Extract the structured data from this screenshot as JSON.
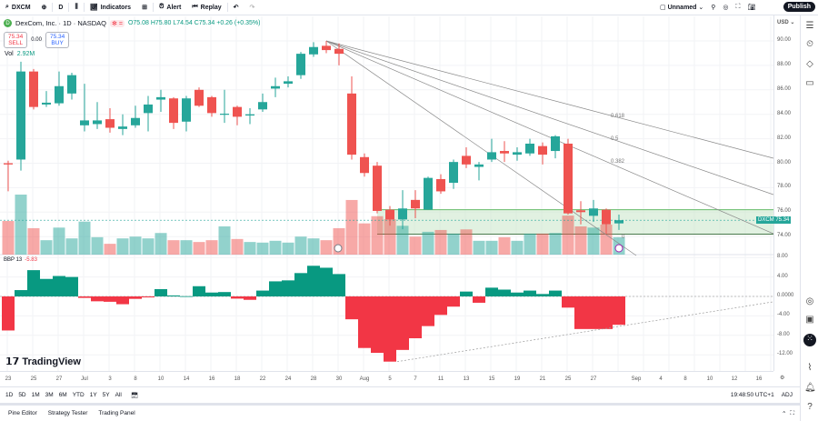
{
  "toolbar": {
    "symbol": "DXCM",
    "interval": "D",
    "indicators": "Indicators",
    "alert": "Alert",
    "replay": "Replay",
    "layout_name": "Unnamed",
    "publish": "Publish"
  },
  "legend": {
    "title": "DexCom, Inc. · 1D · NASDAQ",
    "ohlc": "O75.08 H75.80 L74.54 C75.34 +0.26 (+0.35%)",
    "sell_price": "75.34",
    "sell_label": "SELL",
    "spread": "0.00",
    "buy_price": "75.34",
    "buy_label": "BUY",
    "vol_label": "Vol",
    "vol_value": "2.92M",
    "bbp_label": "BBP 13",
    "bbp_value": "-5.83"
  },
  "price_axis": {
    "currency": "USD",
    "labels": [
      "90.00",
      "88.00",
      "86.00",
      "84.00",
      "82.00",
      "80.00",
      "78.00",
      "76.00",
      "74.00"
    ],
    "last_tag_symbol": "DXCM",
    "last_tag_price": "75.34",
    "bbp_labels": [
      "8.00",
      "4.00",
      "0.0000",
      "-4.00",
      "-8.00",
      "-12.00"
    ]
  },
  "time_axis": {
    "labels": [
      "23",
      "25",
      "27",
      "Jul",
      "3",
      "8",
      "10",
      "14",
      "16",
      "18",
      "22",
      "24",
      "28",
      "30",
      "Aug",
      "5",
      "7",
      "11",
      "13",
      "15",
      "19",
      "21",
      "25",
      "27",
      "Sep",
      "4",
      "8",
      "10",
      "12",
      "16"
    ]
  },
  "range_bar": {
    "ranges": [
      "1D",
      "5D",
      "1M",
      "3M",
      "6M",
      "YTD",
      "1Y",
      "5Y",
      "All"
    ],
    "clock": "19:48:50 UTC+1",
    "adj": "ADJ"
  },
  "bottom_tabs": [
    "Pine Editor",
    "Strategy Tester",
    "Trading Panel"
  ],
  "brand": "TradingView",
  "colors": {
    "up": "#26a69a",
    "down": "#ef5350",
    "bbp_up": "#089981",
    "bbp_down": "#f23645",
    "zone": "#c8e6c9"
  },
  "chart_data": {
    "type": "candlestick",
    "price_ylim": [
      73.3,
      91
    ],
    "candles": [
      [
        80.0,
        80.2,
        77.7,
        79.9
      ],
      [
        80.3,
        88.3,
        79.4,
        87.5
      ],
      [
        87.5,
        87.7,
        84.4,
        84.6
      ],
      [
        84.8,
        85.9,
        84.6,
        84.95
      ],
      [
        84.9,
        87.5,
        84.7,
        86.3
      ],
      [
        85.7,
        87.4,
        85.2,
        87.2
      ],
      [
        83.1,
        86.5,
        82.6,
        83.5
      ],
      [
        83.2,
        85.0,
        82.8,
        83.5
      ],
      [
        83.6,
        84.5,
        82.5,
        82.9
      ],
      [
        82.8,
        84.0,
        82.3,
        83.0
      ],
      [
        83.1,
        84.7,
        82.9,
        83.7
      ],
      [
        84.1,
        85.5,
        82.6,
        84.8
      ],
      [
        85.2,
        86.0,
        84.2,
        85.4
      ],
      [
        85.3,
        85.4,
        82.8,
        83.3
      ],
      [
        83.4,
        85.5,
        82.6,
        85.3
      ],
      [
        86.0,
        86.2,
        84.6,
        84.7
      ],
      [
        85.4,
        85.5,
        83.8,
        84.1
      ],
      [
        84.0,
        86.0,
        83.3,
        84.05
      ],
      [
        84.6,
        84.7,
        83.1,
        83.8
      ],
      [
        83.9,
        84.5,
        83.2,
        84.0
      ],
      [
        84.4,
        85.7,
        84.2,
        85.0
      ],
      [
        86.1,
        87.0,
        85.4,
        86.3
      ],
      [
        86.5,
        87.1,
        86.2,
        86.7
      ],
      [
        87.2,
        89.1,
        86.9,
        88.95
      ],
      [
        88.9,
        89.9,
        88.7,
        89.5
      ],
      [
        89.6,
        90.0,
        89.0,
        89.25
      ],
      [
        89.35,
        89.8,
        88.0,
        88.95
      ],
      [
        85.7,
        87.1,
        80.3,
        80.7
      ],
      [
        80.5,
        80.8,
        78.9,
        79.2
      ],
      [
        79.8,
        80.1,
        75.9,
        76.1
      ],
      [
        76.2,
        76.5,
        74.9,
        75.4
      ],
      [
        75.4,
        77.8,
        74.6,
        76.3
      ],
      [
        77.0,
        77.8,
        75.5,
        76.3
      ],
      [
        76.2,
        78.9,
        76.2,
        78.8
      ],
      [
        78.7,
        79.1,
        77.5,
        77.7
      ],
      [
        78.4,
        80.3,
        77.9,
        80.1
      ],
      [
        80.6,
        81.3,
        79.6,
        79.9
      ],
      [
        79.7,
        80.1,
        78.6,
        79.9
      ],
      [
        80.3,
        82.0,
        80.1,
        80.9
      ],
      [
        81.0,
        81.8,
        80.1,
        80.8
      ],
      [
        80.7,
        81.3,
        80.2,
        80.9
      ],
      [
        80.8,
        82.0,
        80.6,
        81.6
      ],
      [
        81.4,
        81.7,
        79.9,
        80.7
      ],
      [
        81.0,
        82.3,
        80.4,
        82.2
      ],
      [
        81.6,
        82.0,
        75.8,
        75.9
      ],
      [
        76.15,
        76.9,
        75.0,
        76.0
      ],
      [
        75.7,
        77.0,
        75.2,
        76.3
      ],
      [
        76.2,
        76.3,
        74.2,
        75.0
      ],
      [
        75.08,
        75.8,
        74.54,
        75.34
      ]
    ],
    "volume_relative": [
      0.56,
      1.0,
      0.44,
      0.24,
      0.45,
      0.27,
      0.55,
      0.29,
      0.18,
      0.27,
      0.3,
      0.27,
      0.36,
      0.24,
      0.24,
      0.21,
      0.24,
      0.47,
      0.26,
      0.21,
      0.2,
      0.23,
      0.2,
      0.3,
      0.27,
      0.24,
      0.44,
      0.91,
      0.52,
      0.64,
      0.59,
      0.48,
      0.3,
      0.38,
      0.41,
      0.35,
      0.42,
      0.23,
      0.23,
      0.29,
      0.23,
      0.35,
      0.35,
      0.36,
      0.65,
      0.47,
      0.45,
      0.5,
      0.29
    ],
    "bbp": [
      -7.0,
      1.3,
      5.4,
      3.6,
      4.2,
      4.0,
      -0.3,
      -1.0,
      -1.1,
      -1.6,
      -0.5,
      -0.2,
      1.5,
      0.2,
      0.05,
      2.1,
      0.8,
      0.9,
      -0.45,
      -0.7,
      1.2,
      3.1,
      3.3,
      4.8,
      6.3,
      5.9,
      4.6,
      -4.7,
      -10.6,
      -11.6,
      -13.4,
      -11.0,
      -8.6,
      -6.1,
      -3.8,
      -2.1,
      1.0,
      -1.3,
      1.8,
      1.4,
      0.8,
      1.2,
      0.5,
      1.2,
      -2.3,
      -6.7,
      -6.7,
      -6.7,
      -5.83
    ],
    "bbp_ylim": [
      -14,
      10
    ],
    "fib_fan": {
      "levels": [
        "0.618",
        "0.5",
        "0.382"
      ],
      "extra_label": "0"
    },
    "zone": [
      74.2,
      76.2
    ],
    "last_price": 75.34
  }
}
